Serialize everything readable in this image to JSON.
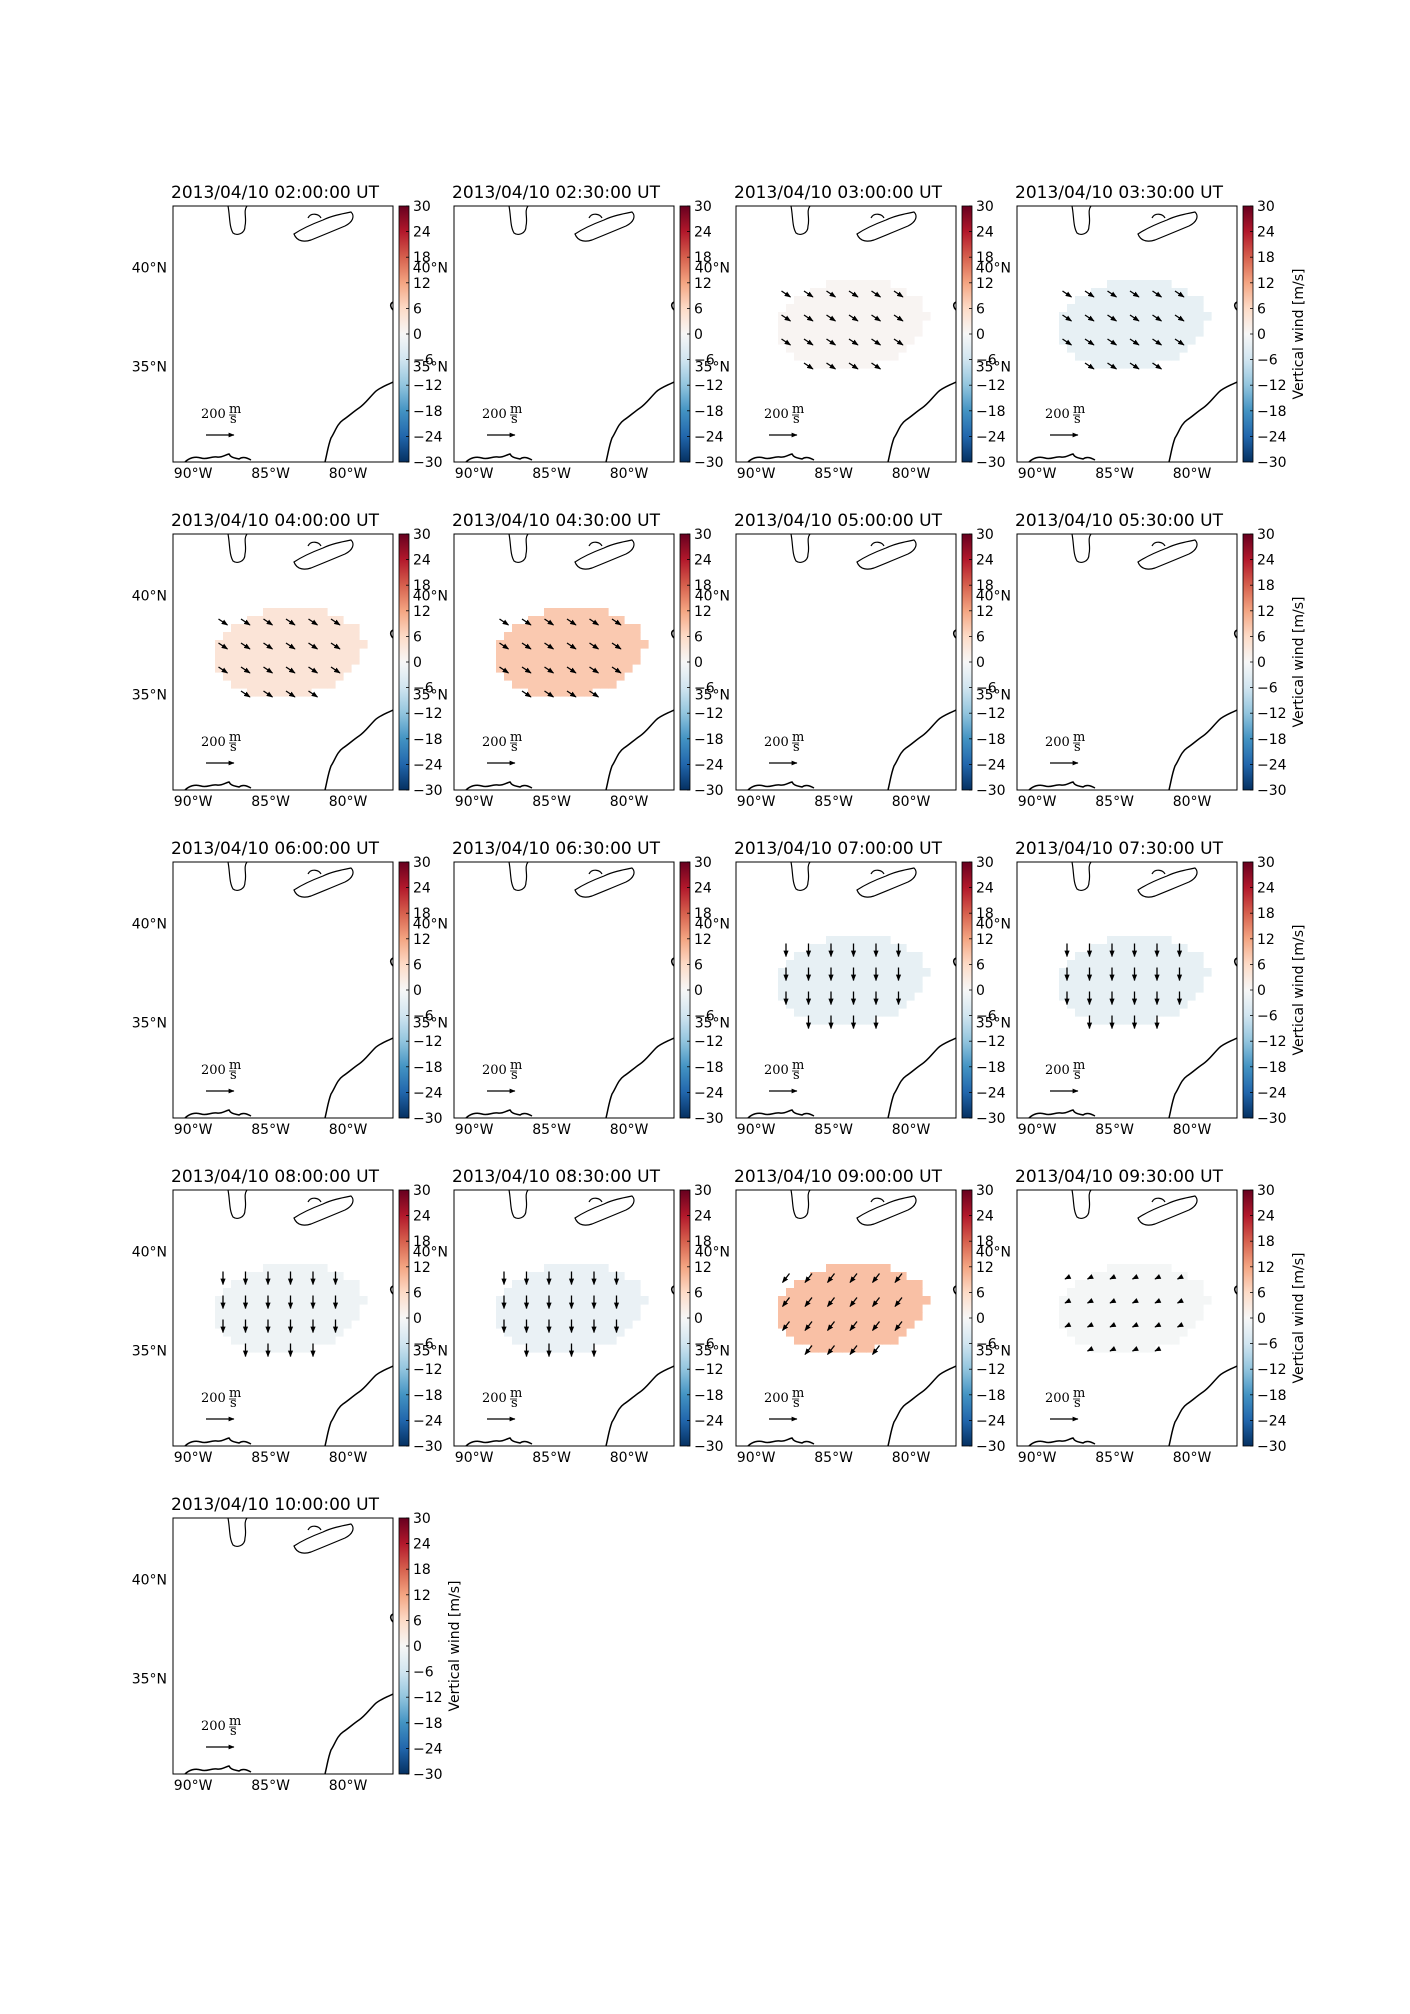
{
  "figure": {
    "lat_ticks": [
      "40°N",
      "35°N"
    ],
    "lon_ticks": [
      "90°W",
      "85°W",
      "80°W"
    ],
    "colorbar": {
      "ticks": [
        "30",
        "24",
        "18",
        "12",
        "6",
        "0",
        "−6",
        "−12",
        "−18",
        "−24",
        "−30"
      ],
      "label": "Vertical wind [m/s]",
      "range": [
        -30,
        30
      ],
      "colormap": "RdBu_r"
    },
    "reference_arrow": {
      "value": "200",
      "unit_num": "m",
      "unit_den": "s"
    }
  },
  "panels": [
    {
      "title": "2013/04/10 02:00:00 UT",
      "vertical_wind": 0,
      "arrows": "none",
      "show_cb_label": false
    },
    {
      "title": "2013/04/10 02:30:00 UT",
      "vertical_wind": 0,
      "arrows": "none",
      "show_cb_label": false
    },
    {
      "title": "2013/04/10 03:00:00 UT",
      "vertical_wind": 0.6,
      "arrows": "se",
      "show_cb_label": false
    },
    {
      "title": "2013/04/10 03:30:00 UT",
      "vertical_wind": -2.5,
      "arrows": "se",
      "show_cb_label": true
    },
    {
      "title": "2013/04/10 04:00:00 UT",
      "vertical_wind": 4,
      "arrows": "se",
      "show_cb_label": false
    },
    {
      "title": "2013/04/10 04:30:00 UT",
      "vertical_wind": 8,
      "arrows": "se",
      "show_cb_label": false
    },
    {
      "title": "2013/04/10 05:00:00 UT",
      "vertical_wind": 0,
      "arrows": "none",
      "show_cb_label": false
    },
    {
      "title": "2013/04/10 05:30:00 UT",
      "vertical_wind": 0,
      "arrows": "none",
      "show_cb_label": true
    },
    {
      "title": "2013/04/10 06:00:00 UT",
      "vertical_wind": 0,
      "arrows": "none",
      "show_cb_label": false
    },
    {
      "title": "2013/04/10 06:30:00 UT",
      "vertical_wind": 0,
      "arrows": "none",
      "show_cb_label": false
    },
    {
      "title": "2013/04/10 07:00:00 UT",
      "vertical_wind": -2.5,
      "arrows": "s",
      "show_cb_label": false
    },
    {
      "title": "2013/04/10 07:30:00 UT",
      "vertical_wind": -2.5,
      "arrows": "s",
      "show_cb_label": true
    },
    {
      "title": "2013/04/10 08:00:00 UT",
      "vertical_wind": -1.5,
      "arrows": "s",
      "show_cb_label": false
    },
    {
      "title": "2013/04/10 08:30:00 UT",
      "vertical_wind": -2,
      "arrows": "s",
      "show_cb_label": false
    },
    {
      "title": "2013/04/10 09:00:00 UT",
      "vertical_wind": 9,
      "arrows": "sw",
      "show_cb_label": false
    },
    {
      "title": "2013/04/10 09:30:00 UT",
      "vertical_wind": -0.5,
      "arrows": "swsmall",
      "show_cb_label": true
    },
    {
      "title": "2013/04/10 10:00:00 UT",
      "vertical_wind": 0,
      "arrows": "none",
      "show_cb_label": true
    }
  ]
}
